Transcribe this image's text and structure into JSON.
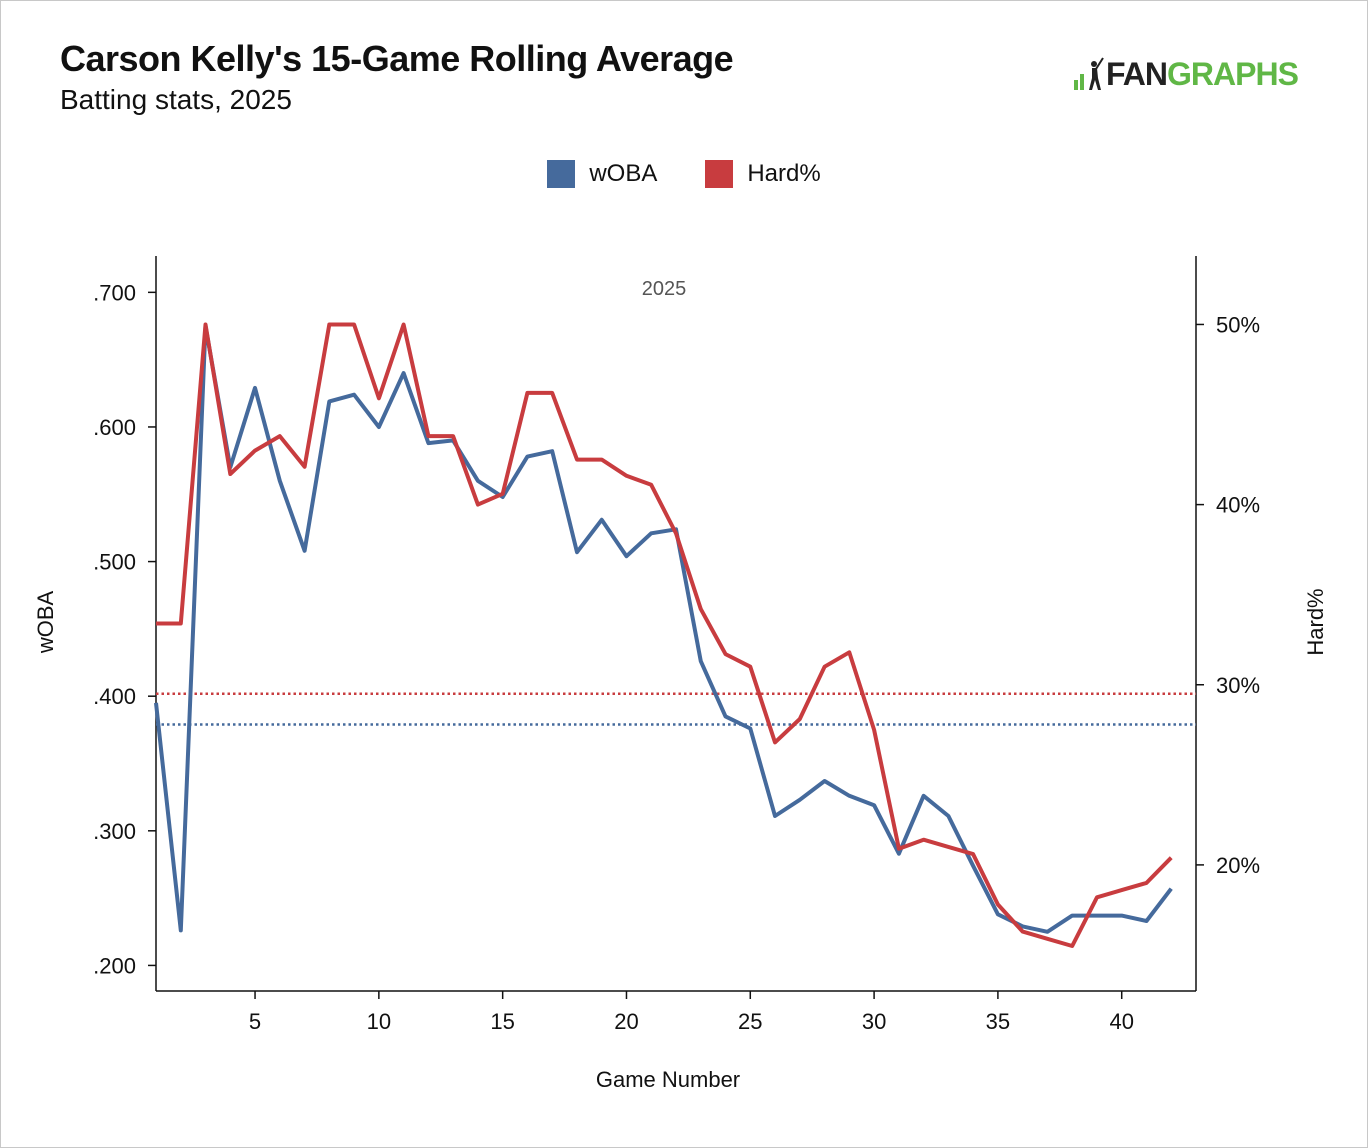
{
  "header": {
    "title": "Carson Kelly's 15-Game Rolling Average",
    "subtitle": "Batting stats, 2025",
    "logo_fan": "FAN",
    "logo_graphs": "GRAPHS"
  },
  "colors": {
    "woba": "#456a9c",
    "hard": "#c83c3f",
    "logo_green": "#60b746"
  },
  "chart_data": {
    "type": "line",
    "title": "Carson Kelly's 15-Game Rolling Average",
    "subtitle": "Batting stats, 2025",
    "annotation": "2025",
    "xlabel": "Game Number",
    "ylabel_left": "wOBA",
    "ylabel_right": "Hard%",
    "xlim": [
      1,
      43
    ],
    "x_ticks": [
      5,
      10,
      15,
      20,
      25,
      30,
      35,
      40
    ],
    "x_tick_labels": [
      "5",
      "10",
      "15",
      "20",
      "25",
      "30",
      "35",
      "40"
    ],
    "ylim_left": [
      0.181,
      0.727
    ],
    "y_ticks_left": [
      0.2,
      0.3,
      0.4,
      0.5,
      0.6,
      0.7
    ],
    "y_tick_labels_left": [
      ".200",
      ".300",
      ".400",
      ".500",
      ".600",
      ".700"
    ],
    "ylim_right": [
      13.0,
      53.8
    ],
    "y_ticks_right": [
      20,
      30,
      40,
      50
    ],
    "y_tick_labels_right": [
      "20%",
      "30%",
      "40%",
      "50%"
    ],
    "legend_position": "top-center",
    "grid": false,
    "x": [
      1,
      2,
      3,
      4,
      5,
      6,
      7,
      8,
      9,
      10,
      11,
      12,
      13,
      14,
      15,
      16,
      17,
      18,
      19,
      20,
      21,
      22,
      23,
      24,
      25,
      26,
      27,
      28,
      29,
      30,
      31,
      32,
      33,
      34,
      35,
      36,
      37,
      38,
      39,
      40,
      41,
      42
    ],
    "series": [
      {
        "name": "wOBA",
        "axis": "left",
        "color": "#456a9c",
        "values": [
          0.395,
          0.226,
          0.675,
          0.57,
          0.629,
          0.56,
          0.508,
          0.619,
          0.624,
          0.6,
          0.64,
          0.588,
          0.59,
          0.56,
          0.548,
          0.578,
          0.582,
          0.507,
          0.531,
          0.504,
          0.521,
          0.524,
          0.426,
          0.385,
          0.376,
          0.311,
          0.323,
          0.337,
          0.326,
          0.319,
          0.283,
          0.326,
          0.311,
          0.274,
          0.238,
          0.229,
          0.225,
          0.237,
          0.237,
          0.237,
          0.233,
          0.257
        ]
      },
      {
        "name": "Hard%",
        "axis": "right",
        "color": "#c83c3f",
        "values": [
          33.4,
          33.4,
          50.0,
          41.7,
          43.0,
          43.8,
          42.1,
          50.0,
          50.0,
          45.9,
          50.0,
          43.8,
          43.8,
          40.0,
          40.6,
          46.2,
          46.2,
          42.5,
          42.5,
          41.6,
          41.1,
          38.4,
          34.2,
          31.7,
          31.0,
          26.8,
          28.1,
          31.0,
          31.8,
          27.5,
          20.9,
          21.4,
          21.0,
          20.6,
          17.8,
          16.3,
          15.9,
          15.5,
          18.2,
          18.6,
          19.0,
          20.4
        ]
      }
    ],
    "reference_lines": [
      {
        "series": "Hard%",
        "axis": "right",
        "value": 29.5,
        "style": "dotted"
      },
      {
        "series": "wOBA",
        "axis": "left",
        "value": 0.379,
        "style": "dotted"
      }
    ]
  }
}
